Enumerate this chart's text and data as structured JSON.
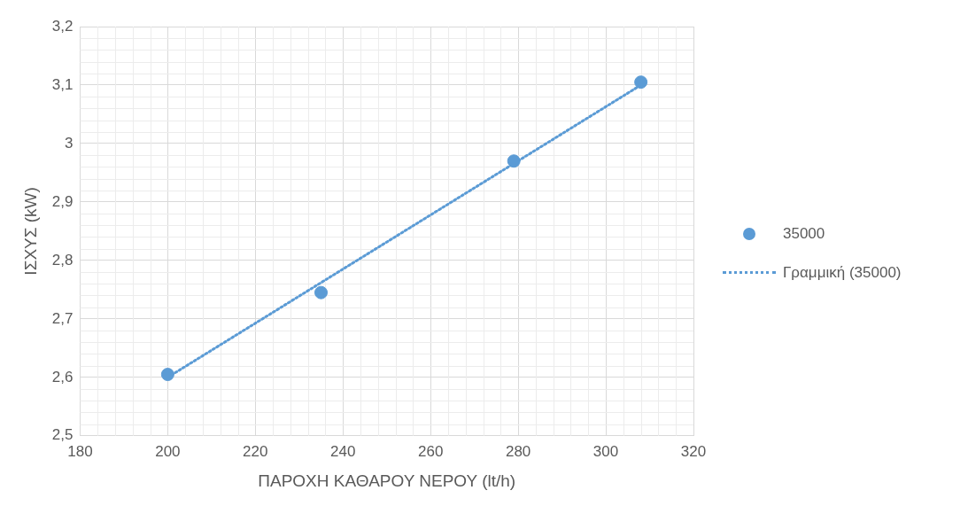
{
  "chart_data": {
    "type": "scatter",
    "xlabel": "ΠΑΡΟΧΗ ΚΑΘΑΡΟΥ ΝΕΡΟΥ (lt/h)",
    "ylabel": "ΙΣΧΥΣ (kW)",
    "x": [
      200,
      235,
      279,
      308
    ],
    "series": [
      {
        "name": "35000",
        "color": "#5b9bd5",
        "values": [
          2.605,
          2.745,
          2.97,
          3.105
        ],
        "marker": "circle"
      },
      {
        "name": "Γραμμική (35000)",
        "type": "line",
        "color": "#5b9bd5",
        "x": [
          200,
          308
        ],
        "values": [
          2.6,
          3.1
        ],
        "line_style": "dotted",
        "marker": "none"
      }
    ],
    "xlim": [
      180,
      320
    ],
    "xticks": [
      180,
      200,
      220,
      240,
      260,
      280,
      300,
      320
    ],
    "ylim": [
      2.5,
      3.2
    ],
    "yticks": [
      {
        "value": 2.5,
        "label": "2,5"
      },
      {
        "value": 2.6,
        "label": "2,6"
      },
      {
        "value": 2.7,
        "label": "2,7"
      },
      {
        "value": 2.8,
        "label": "2,8"
      },
      {
        "value": 2.9,
        "label": "2,9"
      },
      {
        "value": 3,
        "label": "3"
      },
      {
        "value": 3.1,
        "label": "3,1"
      },
      {
        "value": 3.2,
        "label": "3,2"
      }
    ],
    "grid": true,
    "legend": "right"
  }
}
